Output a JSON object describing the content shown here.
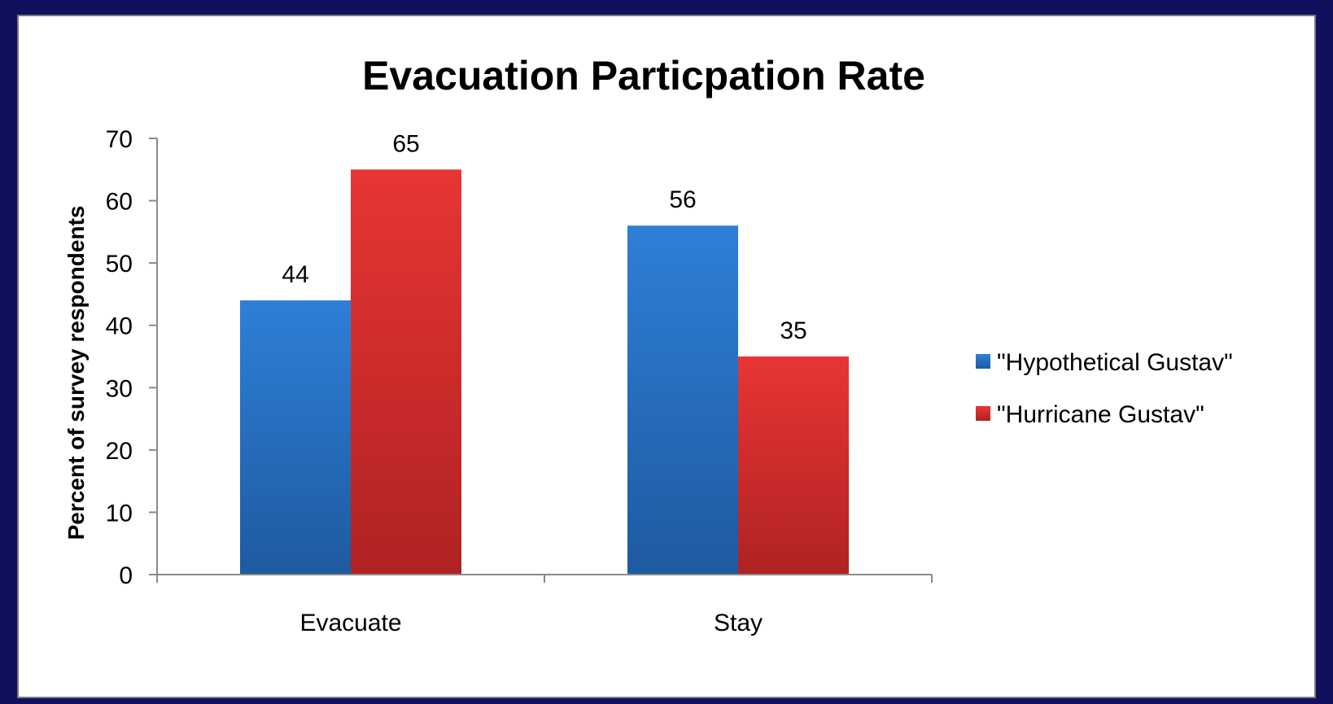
{
  "chart_data": {
    "type": "bar",
    "title": "Evacuation Particpation Rate",
    "xlabel": "",
    "ylabel": "Percent of survey respondents",
    "categories": [
      "Evacuate",
      "Stay"
    ],
    "series": [
      {
        "name": "\"Hypothetical Gustav\"",
        "values": [
          44,
          56
        ],
        "color": "#2a72c8"
      },
      {
        "name": "\"Hurricane Gustav\"",
        "values": [
          65,
          35
        ],
        "color": "#d32a2a"
      }
    ],
    "ylim": [
      0,
      70
    ],
    "yticks": [
      0,
      10,
      20,
      30,
      40,
      50,
      60,
      70
    ],
    "data_labels": true,
    "grid": false,
    "legend_position": "right"
  }
}
